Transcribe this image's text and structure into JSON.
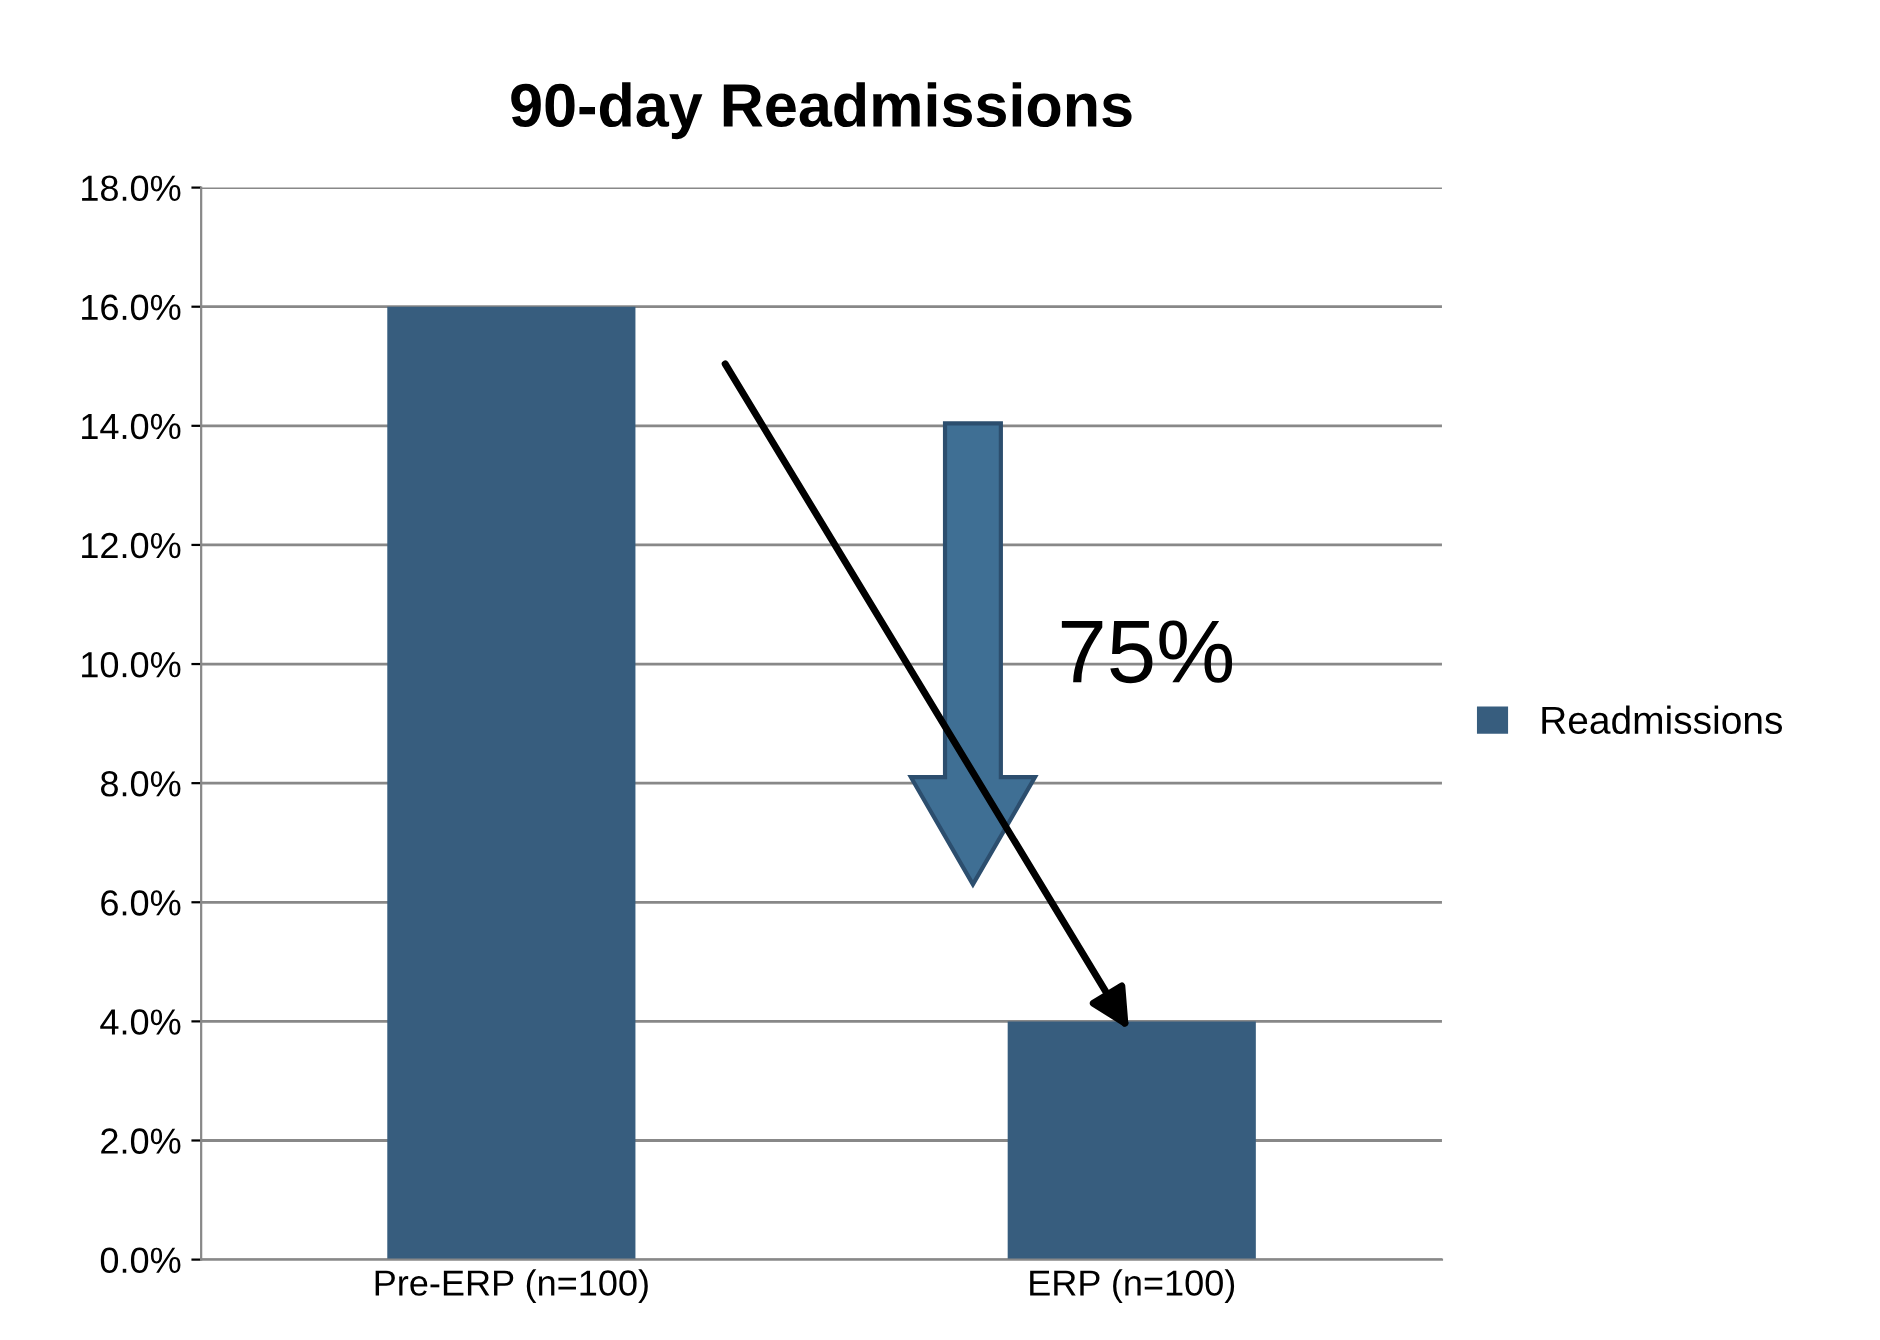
{
  "chart_data": {
    "type": "bar",
    "title": "90-day Readmissions",
    "categories": [
      "Pre-ERP (n=100)",
      "ERP (n=100)"
    ],
    "series": [
      {
        "name": "Readmissions",
        "color": "#375d7e",
        "values": [
          16.0,
          4.0
        ]
      }
    ],
    "ylim": [
      0,
      18
    ],
    "yticks": [
      {
        "value": 0,
        "label": "0.0%"
      },
      {
        "value": 2,
        "label": "2.0%"
      },
      {
        "value": 4,
        "label": "4.0%"
      },
      {
        "value": 6,
        "label": "6.0%"
      },
      {
        "value": 8,
        "label": "8.0%"
      },
      {
        "value": 10,
        "label": "10.0%"
      },
      {
        "value": 12,
        "label": "12.0%"
      },
      {
        "value": 14,
        "label": "14.0%"
      },
      {
        "value": 16,
        "label": "16.0%"
      },
      {
        "value": 18,
        "label": "18.0%"
      }
    ],
    "grid": "y",
    "legend": "right",
    "annotations": [
      "75%"
    ]
  }
}
